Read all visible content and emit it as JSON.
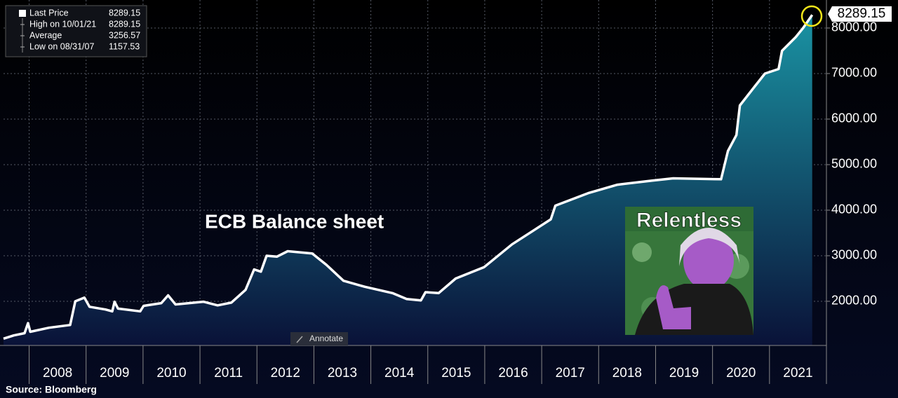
{
  "chart_data": {
    "type": "area",
    "title": "ECB Balance sheet",
    "image_caption": "Relentless",
    "source": "Source: Bloomberg",
    "annotate_button": "Annotate",
    "legend": [
      {
        "label": "Last Price",
        "value": 8289.15
      },
      {
        "label": "High on 10/01/21",
        "value": 8289.15
      },
      {
        "label": "Average",
        "value": 3256.57
      },
      {
        "label": "Low on 08/31/07",
        "value": 1157.53
      }
    ],
    "x": [
      2007.55,
      2007.73,
      2007.92,
      2007.98,
      2008.02,
      2008.35,
      2008.72,
      2008.81,
      2008.97,
      2009.06,
      2009.34,
      2009.46,
      2009.5,
      2009.56,
      2009.95,
      2010.01,
      2010.32,
      2010.44,
      2010.57,
      2011.06,
      2011.31,
      2011.55,
      2011.8,
      2011.95,
      2012.07,
      2012.17,
      2012.35,
      2012.54,
      2012.97,
      2013.22,
      2013.52,
      2013.89,
      2014.38,
      2014.63,
      2014.88,
      2014.96,
      2015.19,
      2015.49,
      2015.99,
      2016.48,
      2017.16,
      2017.24,
      2017.83,
      2018.33,
      2018.94,
      2019.31,
      2020.15,
      2020.27,
      2020.42,
      2020.48,
      2020.73,
      2020.92,
      2021.16,
      2021.22,
      2021.46,
      2021.59,
      2021.75
    ],
    "series": [
      {
        "color": "#ffffff",
        "fill_top": "#1a93a3",
        "fill_bottom": "#0a1238",
        "values": [
          1180,
          1250,
          1300,
          1520,
          1330,
          1420,
          1480,
          2000,
          2080,
          1880,
          1820,
          1780,
          1990,
          1840,
          1780,
          1900,
          1960,
          2130,
          1930,
          1990,
          1910,
          1970,
          2250,
          2700,
          2650,
          3000,
          2980,
          3100,
          3050,
          2800,
          2450,
          2320,
          2180,
          2050,
          2020,
          2200,
          2180,
          2500,
          2750,
          3250,
          3800,
          4100,
          4380,
          4560,
          4650,
          4700,
          4680,
          5300,
          5650,
          6300,
          6700,
          7000,
          7100,
          7500,
          7800,
          8000,
          8289.15
        ]
      }
    ],
    "xlim": [
      2007.55,
      2022.0
    ],
    "xticks": [
      2008,
      2009,
      2010,
      2011,
      2012,
      2013,
      2014,
      2015,
      2016,
      2017,
      2018,
      2019,
      2020,
      2021
    ],
    "ylim": [
      1030,
      8615
    ],
    "yticks": [
      {
        "value": 2000,
        "label": "2000.00"
      },
      {
        "value": 3000,
        "label": "3000.00"
      },
      {
        "value": 4000,
        "label": "4000.00"
      },
      {
        "value": 5000,
        "label": "5000.00"
      },
      {
        "value": 6000,
        "label": "6000.00"
      },
      {
        "value": 7000,
        "label": "7000.00"
      },
      {
        "value": 8000,
        "label": "8000.00"
      }
    ],
    "grid": true
  }
}
